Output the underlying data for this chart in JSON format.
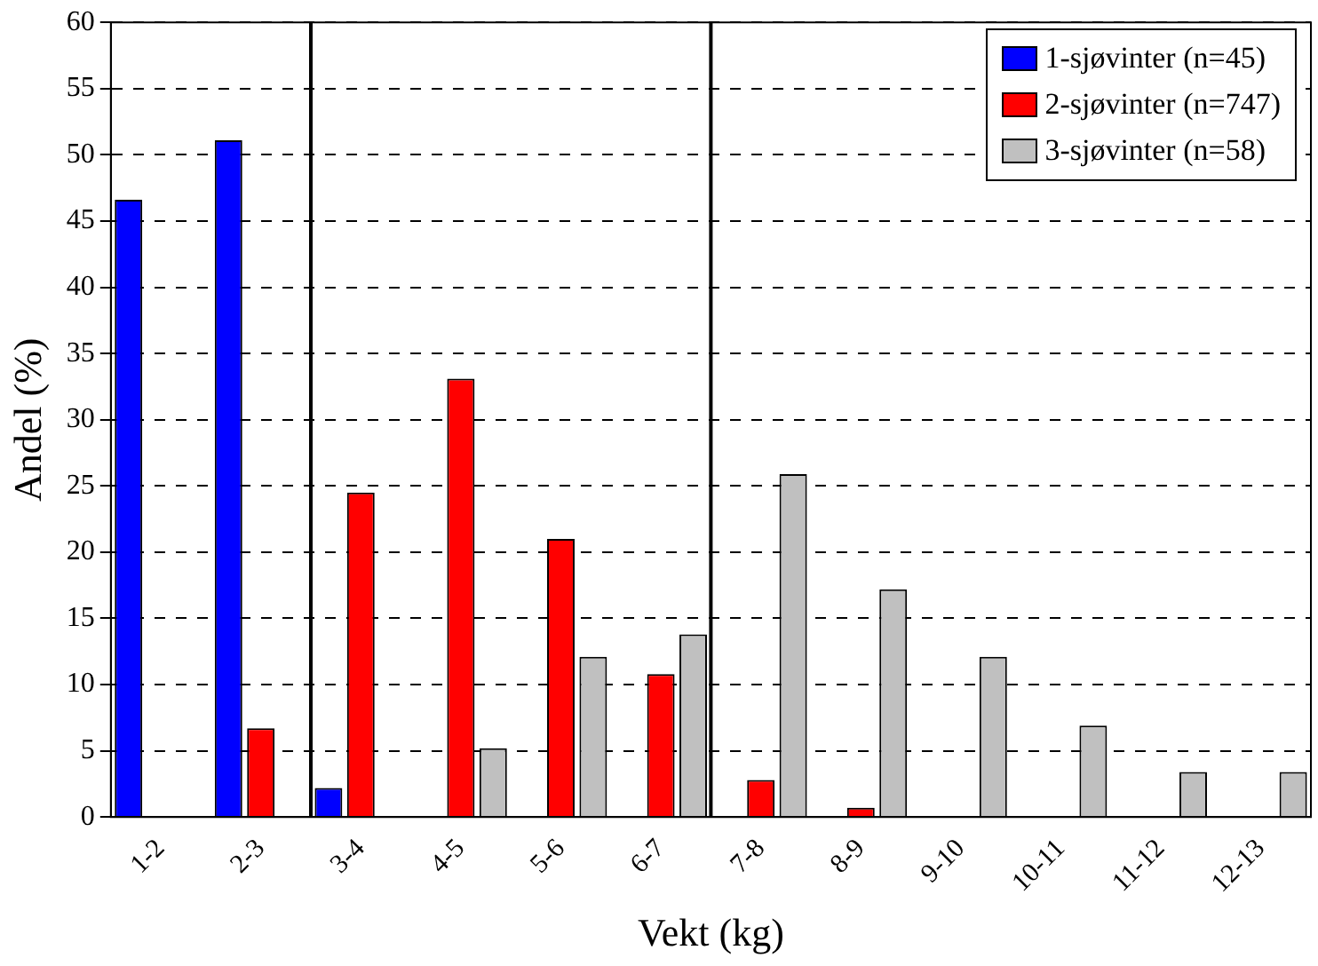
{
  "chart_data": {
    "type": "bar",
    "xlabel": "Vekt (kg)",
    "ylabel": "Andel (%)",
    "categories": [
      "1-2",
      "2-3",
      "3-4",
      "4-5",
      "5-6",
      "6-7",
      "7-8",
      "8-9",
      "9-10",
      "10-11",
      "11-12",
      "12-13"
    ],
    "series": [
      {
        "name": "1-sjøvinter (n=45)",
        "color": "#0000ff",
        "values": [
          46.6,
          51.1,
          2.2,
          0,
          0,
          0,
          0,
          0,
          0,
          0,
          0,
          0
        ]
      },
      {
        "name": "2-sjøvinter (n=747)",
        "color": "#ff0000",
        "values": [
          0,
          6.7,
          24.5,
          33.1,
          21.0,
          10.8,
          2.8,
          0.7,
          0,
          0,
          0,
          0
        ]
      },
      {
        "name": "3-sjøvinter (n=58)",
        "color": "#c0c0c0",
        "values": [
          0,
          0,
          0,
          5.2,
          12.1,
          13.8,
          25.9,
          17.2,
          12.1,
          6.9,
          3.4,
          3.4
        ]
      }
    ],
    "ylim": [
      0,
      60
    ],
    "yticks": [
      0,
      5,
      10,
      15,
      20,
      25,
      30,
      35,
      40,
      45,
      50,
      55,
      60
    ],
    "grid": "y",
    "legend": "top right"
  }
}
